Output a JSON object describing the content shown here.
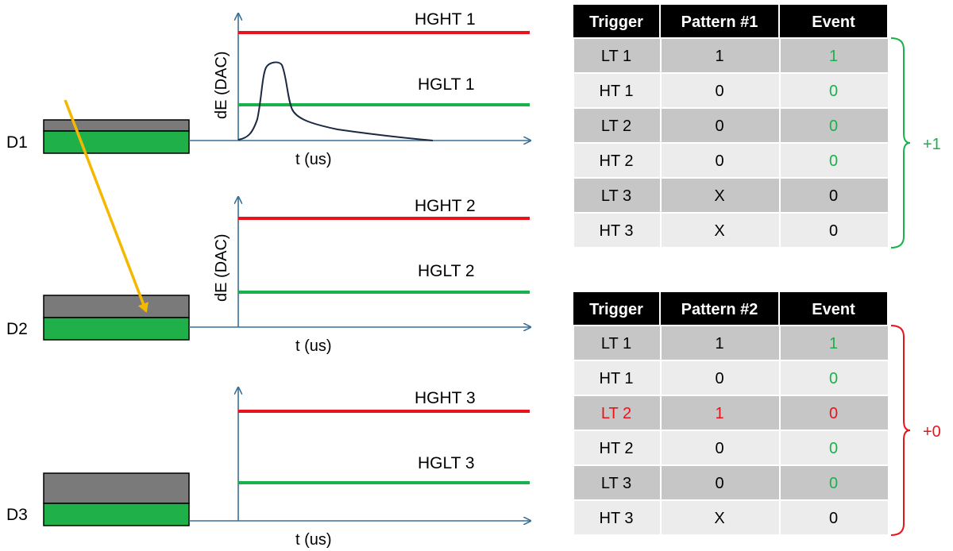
{
  "colors": {
    "high_threshold": "#e8141c",
    "low_threshold": "#19b24a",
    "axis": "#3a6f96",
    "layer_top": "#7a7a7a",
    "layer_bottom": "#1fb04a",
    "particle_track": "#f5b800",
    "header_bg": "#000000",
    "row_dark": "#c6c6c6",
    "row_light": "#ececec"
  },
  "detectors": [
    {
      "label": "D1"
    },
    {
      "label": "D2"
    },
    {
      "label": "D3"
    }
  ],
  "plots": [
    {
      "ylabel": "dE (DAC)",
      "xlabel": "t (us)",
      "high_label": "HGHT 1",
      "low_label": "HGLT 1",
      "has_pulse": true
    },
    {
      "ylabel": "dE (DAC)",
      "xlabel": "t (us)",
      "high_label": "HGHT 2",
      "low_label": "HGLT 2",
      "has_pulse": false
    },
    {
      "ylabel": "",
      "xlabel": "t (us)",
      "high_label": "HGHT 3",
      "low_label": "HGLT 3",
      "has_pulse": false
    }
  ],
  "tables": [
    {
      "headers": [
        "Trigger",
        "Pattern #1",
        "Event"
      ],
      "rows": [
        {
          "cells": [
            "LT 1",
            "1",
            "1"
          ],
          "colors": [
            "black",
            "black",
            "green"
          ]
        },
        {
          "cells": [
            "HT 1",
            "0",
            "0"
          ],
          "colors": [
            "black",
            "black",
            "green"
          ]
        },
        {
          "cells": [
            "LT 2",
            "0",
            "0"
          ],
          "colors": [
            "black",
            "black",
            "green"
          ]
        },
        {
          "cells": [
            "HT 2",
            "0",
            "0"
          ],
          "colors": [
            "black",
            "black",
            "green"
          ]
        },
        {
          "cells": [
            "LT 3",
            "X",
            "0"
          ],
          "colors": [
            "black",
            "black",
            "black"
          ]
        },
        {
          "cells": [
            "HT 3",
            "X",
            "0"
          ],
          "colors": [
            "black",
            "black",
            "black"
          ]
        }
      ],
      "result": "+1",
      "result_color": "green"
    },
    {
      "headers": [
        "Trigger",
        "Pattern #2",
        "Event"
      ],
      "rows": [
        {
          "cells": [
            "LT 1",
            "1",
            "1"
          ],
          "colors": [
            "black",
            "black",
            "green"
          ]
        },
        {
          "cells": [
            "HT 1",
            "0",
            "0"
          ],
          "colors": [
            "black",
            "black",
            "green"
          ]
        },
        {
          "cells": [
            "LT 2",
            "1",
            "0"
          ],
          "colors": [
            "red",
            "red",
            "red"
          ]
        },
        {
          "cells": [
            "HT 2",
            "0",
            "0"
          ],
          "colors": [
            "black",
            "black",
            "green"
          ]
        },
        {
          "cells": [
            "LT 3",
            "0",
            "0"
          ],
          "colors": [
            "black",
            "black",
            "green"
          ]
        },
        {
          "cells": [
            "HT 3",
            "X",
            "0"
          ],
          "colors": [
            "black",
            "black",
            "black"
          ]
        }
      ],
      "result": "+0",
      "result_color": "red"
    }
  ]
}
